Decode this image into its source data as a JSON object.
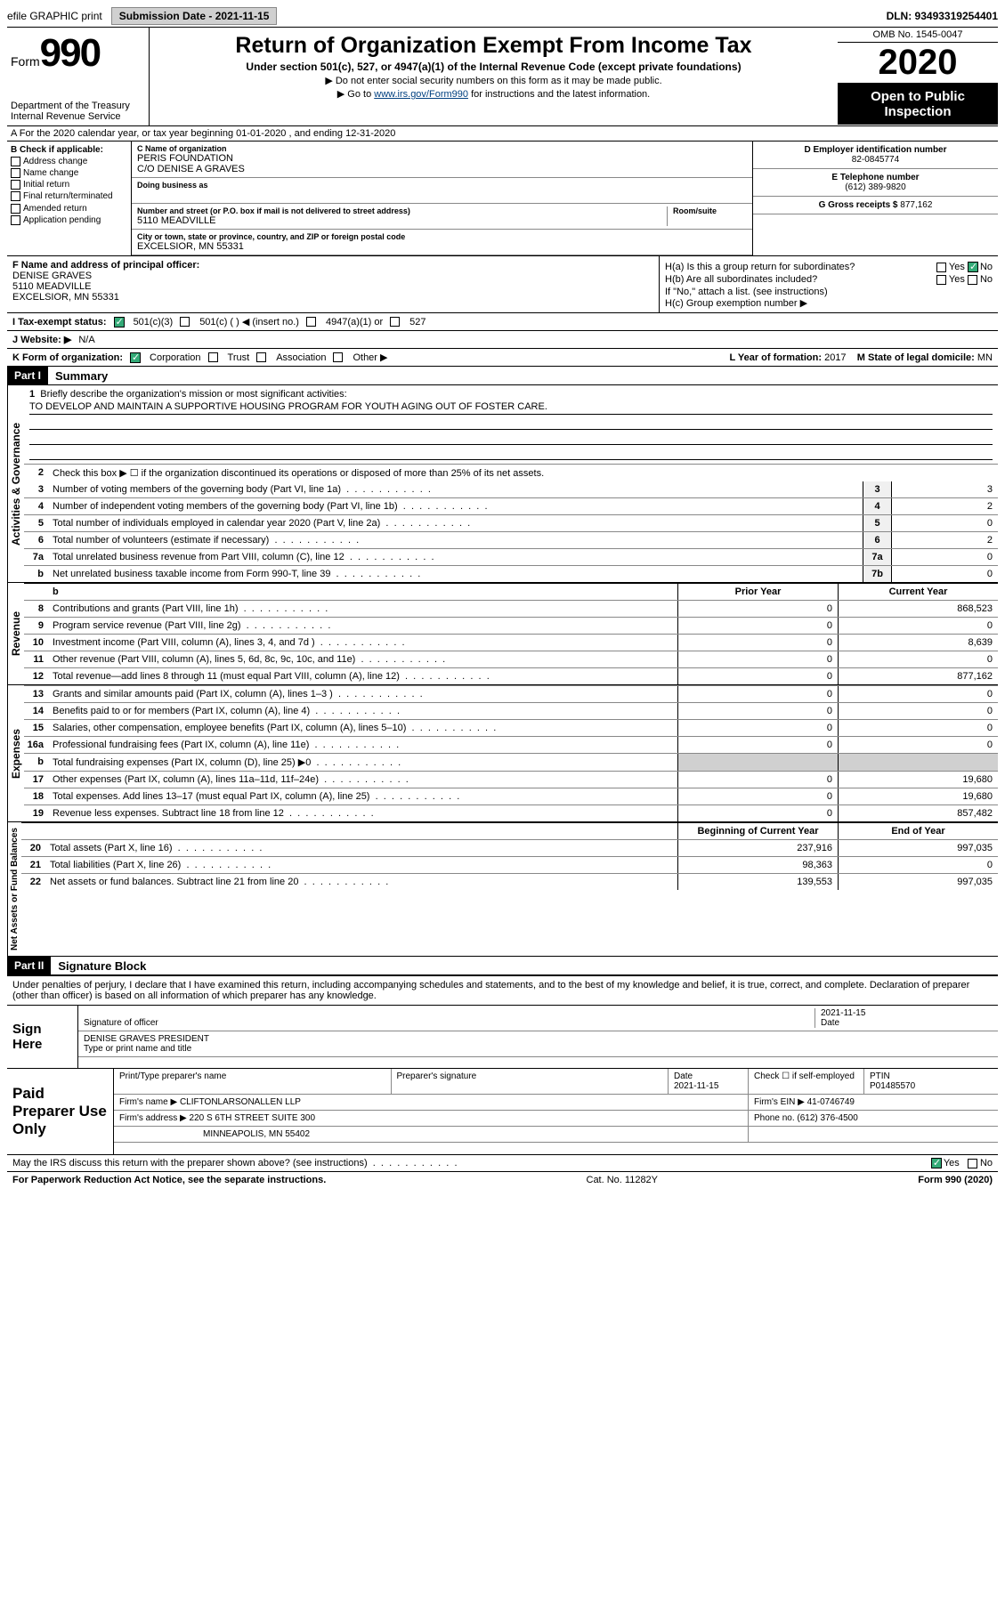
{
  "topbar": {
    "efile": "efile GRAPHIC print",
    "submission_label": "Submission Date - 2021-11-15",
    "dln": "DLN: 93493319254401"
  },
  "header": {
    "form_word": "Form",
    "form_num": "990",
    "dept": "Department of the Treasury\nInternal Revenue Service",
    "title": "Return of Organization Exempt From Income Tax",
    "subtitle": "Under section 501(c), 527, or 4947(a)(1) of the Internal Revenue Code (except private foundations)",
    "note1": "▶ Do not enter social security numbers on this form as it may be made public.",
    "note2_pre": "▶ Go to ",
    "note2_link": "www.irs.gov/Form990",
    "note2_post": " for instructions and the latest information.",
    "omb": "OMB No. 1545-0047",
    "year": "2020",
    "open": "Open to Public Inspection"
  },
  "row_a": "A For the 2020 calendar year, or tax year beginning 01-01-2020   , and ending 12-31-2020",
  "col_b": {
    "label": "B Check if applicable:",
    "items": [
      "Address change",
      "Name change",
      "Initial return",
      "Final return/terminated",
      "Amended return",
      "Application pending"
    ]
  },
  "col_c": {
    "name_lbl": "C Name of organization",
    "name": "PERIS FOUNDATION",
    "co": "C/O DENISE A GRAVES",
    "dba_lbl": "Doing business as",
    "street_lbl": "Number and street (or P.O. box if mail is not delivered to street address)",
    "room_lbl": "Room/suite",
    "street": "5110 MEADVILLE",
    "city_lbl": "City or town, state or province, country, and ZIP or foreign postal code",
    "city": "EXCELSIOR, MN  55331"
  },
  "col_d": {
    "ein_lbl": "D Employer identification number",
    "ein": "82-0845774",
    "phone_lbl": "E Telephone number",
    "phone": "(612) 389-9820",
    "gross_lbl": "G Gross receipts $",
    "gross": "877,162"
  },
  "f": {
    "lbl": "F  Name and address of principal officer:",
    "name": "DENISE GRAVES",
    "street": "5110 MEADVILLE",
    "city": "EXCELSIOR, MN  55331"
  },
  "h": {
    "a": "H(a)  Is this a group return for subordinates?",
    "b": "H(b)  Are all subordinates included?",
    "b_note": "If \"No,\" attach a list. (see instructions)",
    "c": "H(c)  Group exemption number ▶",
    "yes": "Yes",
    "no": "No"
  },
  "i": {
    "lbl": "I   Tax-exempt status:",
    "opts": [
      "501(c)(3)",
      "501(c) (  ) ◀ (insert no.)",
      "4947(a)(1) or",
      "527"
    ]
  },
  "j": {
    "lbl": "J   Website: ▶",
    "val": "N/A"
  },
  "k": {
    "lbl": "K Form of organization:",
    "opts": [
      "Corporation",
      "Trust",
      "Association",
      "Other ▶"
    ]
  },
  "l": {
    "lbl": "L Year of formation:",
    "val": "2017"
  },
  "m": {
    "lbl": "M State of legal domicile:",
    "val": "MN"
  },
  "parts": {
    "p1": "Part I",
    "p1_title": "Summary",
    "p2": "Part II",
    "p2_title": "Signature Block"
  },
  "sidelabels": {
    "ag": "Activities & Governance",
    "rev": "Revenue",
    "exp": "Expenses",
    "na": "Net Assets or Fund Balances"
  },
  "summary": {
    "q1": "Briefly describe the organization's mission or most significant activities:",
    "mission": "TO DEVELOP AND MAINTAIN A SUPPORTIVE HOUSING PROGRAM FOR YOUTH AGING OUT OF FOSTER CARE.",
    "q2": "Check this box ▶ ☐  if the organization discontinued its operations or disposed of more than 25% of its net assets.",
    "lines": [
      {
        "n": "3",
        "t": "Number of voting members of the governing body (Part VI, line 1a)",
        "box": "3",
        "v": "3"
      },
      {
        "n": "4",
        "t": "Number of independent voting members of the governing body (Part VI, line 1b)",
        "box": "4",
        "v": "2"
      },
      {
        "n": "5",
        "t": "Total number of individuals employed in calendar year 2020 (Part V, line 2a)",
        "box": "5",
        "v": "0"
      },
      {
        "n": "6",
        "t": "Total number of volunteers (estimate if necessary)",
        "box": "6",
        "v": "2"
      },
      {
        "n": "7a",
        "t": "Total unrelated business revenue from Part VIII, column (C), line 12",
        "box": "7a",
        "v": "0"
      },
      {
        "n": "b",
        "t": "Net unrelated business taxable income from Form 990-T, line 39",
        "box": "7b",
        "v": "0"
      }
    ]
  },
  "twocol": {
    "h1": "Prior Year",
    "h2": "Current Year",
    "rev": [
      {
        "n": "8",
        "t": "Contributions and grants (Part VIII, line 1h)",
        "c1": "0",
        "c2": "868,523"
      },
      {
        "n": "9",
        "t": "Program service revenue (Part VIII, line 2g)",
        "c1": "0",
        "c2": "0"
      },
      {
        "n": "10",
        "t": "Investment income (Part VIII, column (A), lines 3, 4, and 7d )",
        "c1": "0",
        "c2": "8,639"
      },
      {
        "n": "11",
        "t": "Other revenue (Part VIII, column (A), lines 5, 6d, 8c, 9c, 10c, and 11e)",
        "c1": "0",
        "c2": "0"
      },
      {
        "n": "12",
        "t": "Total revenue—add lines 8 through 11 (must equal Part VIII, column (A), line 12)",
        "c1": "0",
        "c2": "877,162"
      }
    ],
    "exp": [
      {
        "n": "13",
        "t": "Grants and similar amounts paid (Part IX, column (A), lines 1–3 )",
        "c1": "0",
        "c2": "0"
      },
      {
        "n": "14",
        "t": "Benefits paid to or for members (Part IX, column (A), line 4)",
        "c1": "0",
        "c2": "0"
      },
      {
        "n": "15",
        "t": "Salaries, other compensation, employee benefits (Part IX, column (A), lines 5–10)",
        "c1": "0",
        "c2": "0"
      },
      {
        "n": "16a",
        "t": "Professional fundraising fees (Part IX, column (A), line 11e)",
        "c1": "0",
        "c2": "0"
      },
      {
        "n": "b",
        "t": "Total fundraising expenses (Part IX, column (D), line 25) ▶0",
        "c1": "",
        "c2": ""
      },
      {
        "n": "17",
        "t": "Other expenses (Part IX, column (A), lines 11a–11d, 11f–24e)",
        "c1": "0",
        "c2": "19,680"
      },
      {
        "n": "18",
        "t": "Total expenses. Add lines 13–17 (must equal Part IX, column (A), line 25)",
        "c1": "0",
        "c2": "19,680"
      },
      {
        "n": "19",
        "t": "Revenue less expenses. Subtract line 18 from line 12",
        "c1": "0",
        "c2": "857,482"
      }
    ],
    "na_h1": "Beginning of Current Year",
    "na_h2": "End of Year",
    "na": [
      {
        "n": "20",
        "t": "Total assets (Part X, line 16)",
        "c1": "237,916",
        "c2": "997,035"
      },
      {
        "n": "21",
        "t": "Total liabilities (Part X, line 26)",
        "c1": "98,363",
        "c2": "0"
      },
      {
        "n": "22",
        "t": "Net assets or fund balances. Subtract line 21 from line 20",
        "c1": "139,553",
        "c2": "997,035"
      }
    ]
  },
  "sig": {
    "decl": "Under penalties of perjury, I declare that I have examined this return, including accompanying schedules and statements, and to the best of my knowledge and belief, it is true, correct, and complete. Declaration of preparer (other than officer) is based on all information of which preparer has any knowledge.",
    "sign_here": "Sign Here",
    "officer_sig": "Signature of officer",
    "date": "2021-11-15",
    "date_lbl": "Date",
    "officer_name": "DENISE GRAVES PRESIDENT",
    "officer_name_lbl": "Type or print name and title"
  },
  "prep": {
    "label": "Paid Preparer Use Only",
    "h": [
      "Print/Type preparer's name",
      "Preparer's signature",
      "Date",
      "Check ☐ if self-employed",
      "PTIN"
    ],
    "date": "2021-11-15",
    "ptin": "P01485570",
    "firm_lbl": "Firm's name    ▶",
    "firm": "CLIFTONLARSONALLEN LLP",
    "ein_lbl": "Firm's EIN ▶",
    "ein": "41-0746749",
    "addr_lbl": "Firm's address ▶",
    "addr1": "220 S 6TH STREET SUITE 300",
    "addr2": "MINNEAPOLIS, MN  55402",
    "phone_lbl": "Phone no.",
    "phone": "(612) 376-4500"
  },
  "discuss": {
    "q": "May the IRS discuss this return with the preparer shown above? (see instructions)",
    "yes": "Yes",
    "no": "No"
  },
  "bottom": {
    "left": "For Paperwork Reduction Act Notice, see the separate instructions.",
    "mid": "Cat. No. 11282Y",
    "right": "Form 990 (2020)"
  },
  "colors": {
    "link": "#004080",
    "header_bg": "#000000"
  }
}
